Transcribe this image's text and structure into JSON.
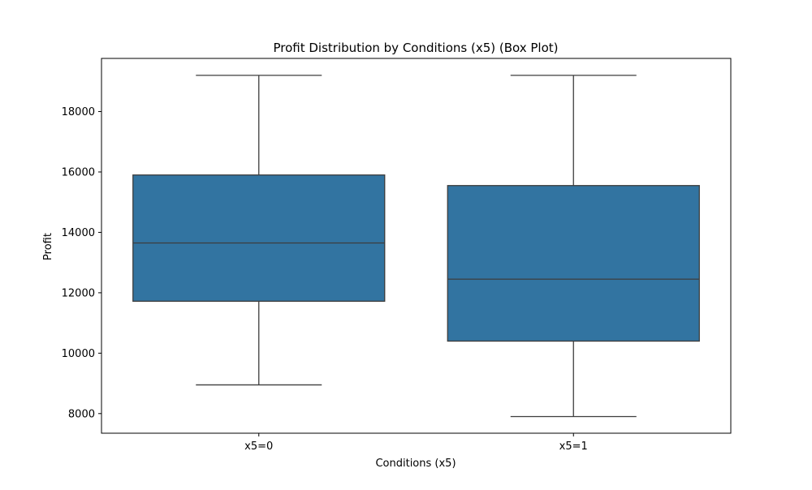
{
  "chart_data": {
    "type": "box",
    "title": "Profit Distribution by Conditions (x5) (Box Plot)",
    "xlabel": "Conditions (x5)",
    "ylabel": "Profit",
    "categories": [
      "x5=0",
      "x5=1"
    ],
    "boxes": [
      {
        "category": "x5=0",
        "whisker_low": 8950,
        "q1": 11720,
        "median": 13650,
        "q3": 15900,
        "whisker_high": 19200
      },
      {
        "category": "x5=1",
        "whisker_low": 7900,
        "q1": 10400,
        "median": 12450,
        "q3": 15550,
        "whisker_high": 19200
      }
    ],
    "ylim": [
      7350,
      19760
    ],
    "yticks": [
      8000,
      10000,
      12000,
      14000,
      16000,
      18000
    ],
    "grid": false,
    "box_color": "#3274a1",
    "line_color": "#3d3d3d"
  }
}
